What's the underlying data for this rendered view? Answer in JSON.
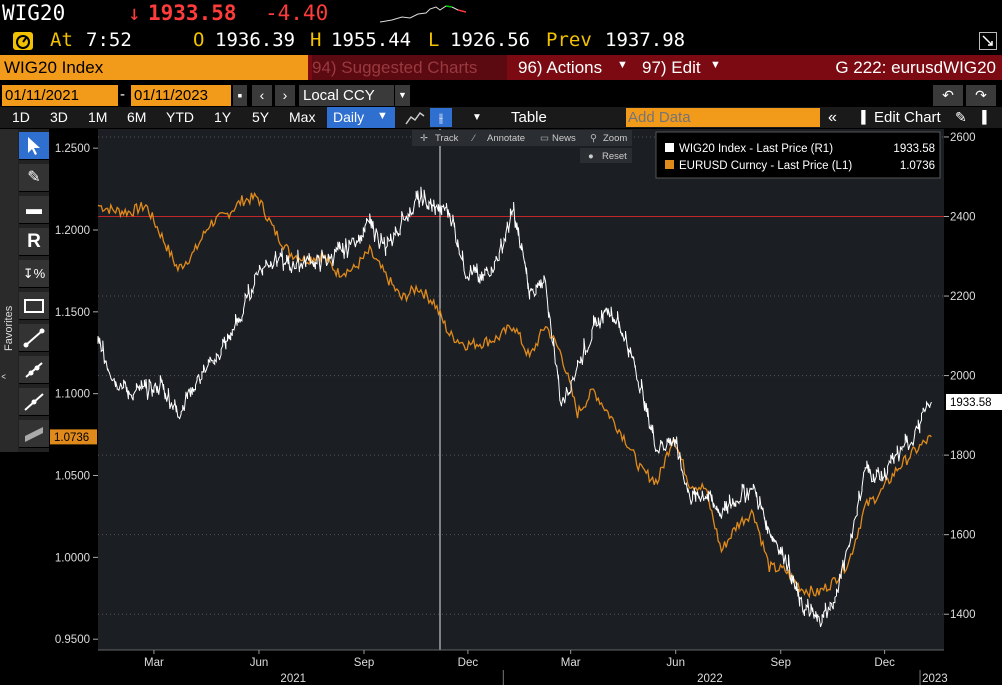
{
  "header": {
    "ticker": "WIG20",
    "arrow": "↓",
    "last": "1933.58",
    "change": "-4.40"
  },
  "quote": {
    "at_label": "At",
    "time": "7:52",
    "open_label": "O",
    "open": "1936.39",
    "high_label": "H",
    "high": "1955.44",
    "low_label": "L",
    "low": "1926.56",
    "prev_label": "Prev",
    "prev": "1937.98"
  },
  "menubar": {
    "title": "WIG20 Index",
    "suggested": "94) Suggested Charts",
    "actions": "96) Actions",
    "edit": "97) Edit",
    "gcode": "G 222: eurusdWIG20"
  },
  "daterow": {
    "start": "01/11/2021",
    "sep": "-",
    "end": "01/11/2023",
    "currency": "Local CCY"
  },
  "toolbar": {
    "periods": [
      "1D",
      "3D",
      "1M",
      "6M",
      "YTD",
      "1Y",
      "5Y",
      "Max"
    ],
    "freq": "Daily",
    "table": "Table",
    "add_data_placeholder": "Add Data",
    "edit_chart": "Edit Chart"
  },
  "chart_tools": {
    "track": "Track",
    "annotate": "Annotate",
    "news": "News",
    "zoom": "Zoom",
    "reset": "Reset"
  },
  "sidebar": {
    "favorites": "Favorites"
  },
  "colors": {
    "wig": "#ffffff",
    "eurusd": "#e08a1c",
    "accent": "#f29a1a",
    "menubar": "#7b0a12",
    "refline": "#c0282a"
  },
  "chart_data": {
    "type": "line",
    "legend": [
      {
        "name": "WIG20 Index - Last Price (R1)",
        "value": "1933.58"
      },
      {
        "name": "EURUSD Curncy - Last Price (L1)",
        "value": "1.0736"
      }
    ],
    "left_axis": {
      "ticks": [
        "1.2500",
        "1.2000",
        "1.1500",
        "1.1000",
        "1.0500",
        "1.0000",
        "0.9500"
      ],
      "range": [
        0.9434,
        1.2617
      ],
      "current": "1.0736"
    },
    "right_axis": {
      "ticks": [
        "2600",
        "2400",
        "2200",
        "2000",
        "1800",
        "1600",
        "1400"
      ],
      "range": [
        1310,
        2620
      ],
      "current": "1933.58"
    },
    "x_month_labels": [
      "Mar",
      "Jun",
      "Sep",
      "Dec",
      "Mar",
      "Jun",
      "Sep",
      "Dec"
    ],
    "x_year_labels": [
      "2021",
      "2022",
      "2023"
    ],
    "series": [
      {
        "name": "WIG20 Index - Last Price (R1)",
        "points": [
          [
            "2021-01-11",
            2080
          ],
          [
            "2021-01-25",
            1990
          ],
          [
            "2021-02-08",
            1950
          ],
          [
            "2021-02-22",
            1960
          ],
          [
            "2021-03-08",
            1970
          ],
          [
            "2021-03-22",
            1900
          ],
          [
            "2021-04-05",
            1975
          ],
          [
            "2021-04-19",
            2015
          ],
          [
            "2021-05-03",
            2080
          ],
          [
            "2021-05-17",
            2150
          ],
          [
            "2021-05-31",
            2260
          ],
          [
            "2021-06-14",
            2290
          ],
          [
            "2021-06-28",
            2270
          ],
          [
            "2021-07-12",
            2285
          ],
          [
            "2021-07-26",
            2280
          ],
          [
            "2021-08-09",
            2300
          ],
          [
            "2021-08-23",
            2330
          ],
          [
            "2021-09-06",
            2380
          ],
          [
            "2021-09-20",
            2310
          ],
          [
            "2021-10-04",
            2380
          ],
          [
            "2021-10-18",
            2440
          ],
          [
            "2021-11-01",
            2420
          ],
          [
            "2021-11-15",
            2410
          ],
          [
            "2021-11-29",
            2260
          ],
          [
            "2021-12-13",
            2240
          ],
          [
            "2021-12-27",
            2290
          ],
          [
            "2022-01-10",
            2410
          ],
          [
            "2022-01-24",
            2210
          ],
          [
            "2022-02-07",
            2220
          ],
          [
            "2022-02-21",
            1920
          ],
          [
            "2022-03-07",
            2020
          ],
          [
            "2022-03-21",
            2110
          ],
          [
            "2022-04-04",
            2170
          ],
          [
            "2022-04-18",
            2090
          ],
          [
            "2022-05-02",
            1960
          ],
          [
            "2022-05-16",
            1810
          ],
          [
            "2022-05-30",
            1840
          ],
          [
            "2022-06-13",
            1690
          ],
          [
            "2022-06-27",
            1700
          ],
          [
            "2022-07-11",
            1650
          ],
          [
            "2022-07-25",
            1690
          ],
          [
            "2022-08-08",
            1710
          ],
          [
            "2022-08-22",
            1610
          ],
          [
            "2022-09-05",
            1540
          ],
          [
            "2022-09-19",
            1420
          ],
          [
            "2022-10-03",
            1380
          ],
          [
            "2022-10-17",
            1420
          ],
          [
            "2022-10-31",
            1570
          ],
          [
            "2022-11-14",
            1760
          ],
          [
            "2022-11-28",
            1740
          ],
          [
            "2022-12-12",
            1790
          ],
          [
            "2022-12-26",
            1840
          ],
          [
            "2023-01-11",
            1933.58
          ]
        ]
      },
      {
        "name": "EURUSD Curncy - Last Price (L1)",
        "points": [
          [
            "2021-01-11",
            1.215
          ],
          [
            "2021-01-25",
            1.212
          ],
          [
            "2021-02-08",
            1.211
          ],
          [
            "2021-02-22",
            1.215
          ],
          [
            "2021-03-08",
            1.196
          ],
          [
            "2021-03-22",
            1.176
          ],
          [
            "2021-04-05",
            1.186
          ],
          [
            "2021-04-19",
            1.204
          ],
          [
            "2021-05-03",
            1.209
          ],
          [
            "2021-05-17",
            1.218
          ],
          [
            "2021-05-31",
            1.22
          ],
          [
            "2021-06-14",
            1.2
          ],
          [
            "2021-06-28",
            1.186
          ],
          [
            "2021-07-12",
            1.182
          ],
          [
            "2021-07-26",
            1.185
          ],
          [
            "2021-08-09",
            1.174
          ],
          [
            "2021-08-23",
            1.176
          ],
          [
            "2021-09-06",
            1.187
          ],
          [
            "2021-09-20",
            1.172
          ],
          [
            "2021-10-04",
            1.158
          ],
          [
            "2021-10-18",
            1.165
          ],
          [
            "2021-11-01",
            1.156
          ],
          [
            "2021-11-15",
            1.136
          ],
          [
            "2021-11-29",
            1.13
          ],
          [
            "2021-12-13",
            1.131
          ],
          [
            "2021-12-27",
            1.134
          ],
          [
            "2022-01-10",
            1.142
          ],
          [
            "2022-01-24",
            1.122
          ],
          [
            "2022-02-07",
            1.142
          ],
          [
            "2022-02-21",
            1.124
          ],
          [
            "2022-03-07",
            1.088
          ],
          [
            "2022-03-21",
            1.102
          ],
          [
            "2022-04-04",
            1.087
          ],
          [
            "2022-04-18",
            1.072
          ],
          [
            "2022-05-02",
            1.053
          ],
          [
            "2022-05-16",
            1.046
          ],
          [
            "2022-05-30",
            1.074
          ],
          [
            "2022-06-13",
            1.045
          ],
          [
            "2022-06-27",
            1.042
          ],
          [
            "2022-07-11",
            1.004
          ],
          [
            "2022-07-25",
            1.02
          ],
          [
            "2022-08-08",
            1.028
          ],
          [
            "2022-08-22",
            0.994
          ],
          [
            "2022-09-05",
            0.992
          ],
          [
            "2022-09-19",
            0.981
          ],
          [
            "2022-10-03",
            0.978
          ],
          [
            "2022-10-17",
            0.985
          ],
          [
            "2022-10-31",
            0.998
          ],
          [
            "2022-11-14",
            1.031
          ],
          [
            "2022-11-28",
            1.04
          ],
          [
            "2022-12-12",
            1.054
          ],
          [
            "2022-12-26",
            1.064
          ],
          [
            "2023-01-11",
            1.0736
          ]
        ]
      }
    ]
  }
}
